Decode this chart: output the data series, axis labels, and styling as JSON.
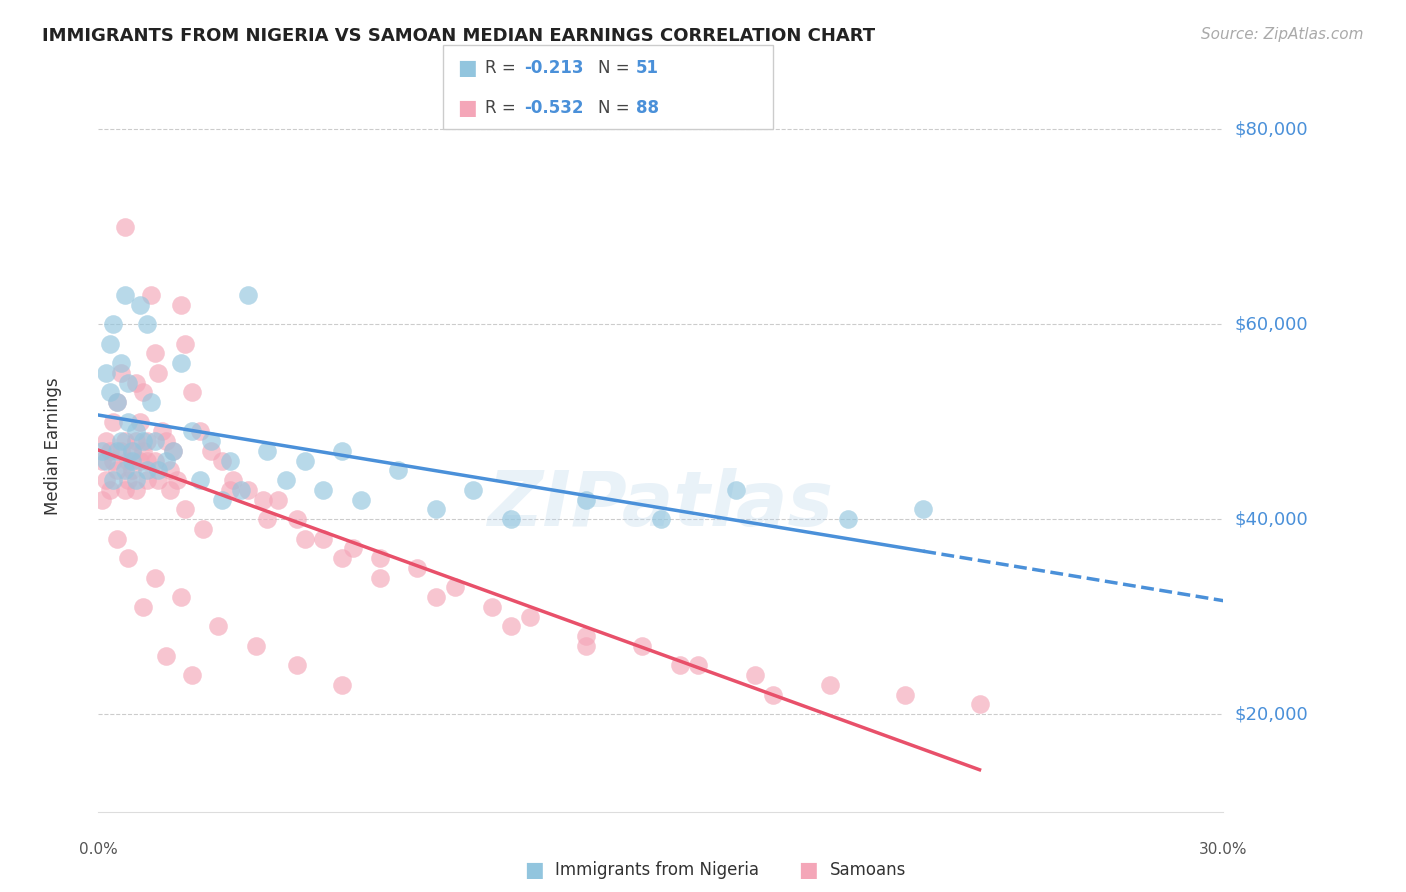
{
  "title": "IMMIGRANTS FROM NIGERIA VS SAMOAN MEDIAN EARNINGS CORRELATION CHART",
  "source_text": "Source: ZipAtlas.com",
  "ylabel": "Median Earnings",
  "ytick_labels": [
    "$20,000",
    "$40,000",
    "$60,000",
    "$80,000"
  ],
  "ytick_values": [
    20000,
    40000,
    60000,
    80000
  ],
  "ymin": 10000,
  "ymax": 85000,
  "xmin": 0.0,
  "xmax": 0.3,
  "legend_r_nigeria": "-0.213",
  "legend_n_nigeria": "51",
  "legend_r_samoan": "-0.532",
  "legend_n_samoan": "88",
  "color_nigeria": "#92c5de",
  "color_samoan": "#f4a6b8",
  "color_nigeria_line": "#4a90d9",
  "color_samoan_line": "#e8506a",
  "color_ytick": "#4a90d9",
  "color_title": "#222222",
  "color_source": "#aaaaaa",
  "background_color": "#ffffff",
  "grid_color": "#cccccc",
  "watermark_text": "ZIPatlas",
  "nigeria_points_x": [
    0.001,
    0.002,
    0.002,
    0.003,
    0.003,
    0.004,
    0.004,
    0.005,
    0.005,
    0.006,
    0.006,
    0.007,
    0.007,
    0.008,
    0.008,
    0.009,
    0.009,
    0.01,
    0.01,
    0.011,
    0.012,
    0.013,
    0.013,
    0.014,
    0.015,
    0.016,
    0.018,
    0.02,
    0.022,
    0.025,
    0.027,
    0.03,
    0.033,
    0.035,
    0.038,
    0.04,
    0.045,
    0.05,
    0.055,
    0.06,
    0.065,
    0.07,
    0.08,
    0.09,
    0.1,
    0.11,
    0.13,
    0.15,
    0.17,
    0.2,
    0.22
  ],
  "nigeria_points_y": [
    47000,
    46000,
    55000,
    53000,
    58000,
    44000,
    60000,
    47000,
    52000,
    48000,
    56000,
    45000,
    63000,
    50000,
    54000,
    47000,
    46000,
    49000,
    44000,
    62000,
    48000,
    45000,
    60000,
    52000,
    48000,
    45000,
    46000,
    47000,
    56000,
    49000,
    44000,
    48000,
    42000,
    46000,
    43000,
    63000,
    47000,
    44000,
    46000,
    43000,
    47000,
    42000,
    45000,
    41000,
    43000,
    40000,
    42000,
    40000,
    43000,
    40000,
    41000
  ],
  "samoan_points_x": [
    0.001,
    0.001,
    0.002,
    0.002,
    0.003,
    0.003,
    0.004,
    0.004,
    0.005,
    0.005,
    0.006,
    0.006,
    0.007,
    0.007,
    0.008,
    0.008,
    0.009,
    0.009,
    0.01,
    0.01,
    0.011,
    0.011,
    0.012,
    0.012,
    0.013,
    0.013,
    0.014,
    0.015,
    0.015,
    0.016,
    0.017,
    0.018,
    0.019,
    0.02,
    0.021,
    0.022,
    0.023,
    0.025,
    0.027,
    0.03,
    0.033,
    0.036,
    0.04,
    0.044,
    0.048,
    0.053,
    0.06,
    0.068,
    0.075,
    0.085,
    0.095,
    0.105,
    0.115,
    0.13,
    0.145,
    0.16,
    0.175,
    0.195,
    0.215,
    0.235,
    0.007,
    0.01,
    0.013,
    0.016,
    0.019,
    0.023,
    0.028,
    0.012,
    0.018,
    0.025,
    0.035,
    0.045,
    0.055,
    0.065,
    0.075,
    0.09,
    0.11,
    0.13,
    0.155,
    0.18,
    0.005,
    0.008,
    0.015,
    0.022,
    0.032,
    0.042,
    0.053,
    0.065
  ],
  "samoan_points_y": [
    46000,
    42000,
    48000,
    44000,
    47000,
    43000,
    46000,
    50000,
    45000,
    52000,
    47000,
    55000,
    43000,
    48000,
    46000,
    44000,
    47000,
    45000,
    48000,
    43000,
    50000,
    46000,
    53000,
    47000,
    48000,
    44000,
    63000,
    46000,
    57000,
    55000,
    49000,
    48000,
    45000,
    47000,
    44000,
    62000,
    58000,
    53000,
    49000,
    47000,
    46000,
    44000,
    43000,
    42000,
    42000,
    40000,
    38000,
    37000,
    36000,
    35000,
    33000,
    31000,
    30000,
    28000,
    27000,
    25000,
    24000,
    23000,
    22000,
    21000,
    70000,
    54000,
    46000,
    44000,
    43000,
    41000,
    39000,
    31000,
    26000,
    24000,
    43000,
    40000,
    38000,
    36000,
    34000,
    32000,
    29000,
    27000,
    25000,
    22000,
    38000,
    36000,
    34000,
    32000,
    29000,
    27000,
    25000,
    23000
  ]
}
